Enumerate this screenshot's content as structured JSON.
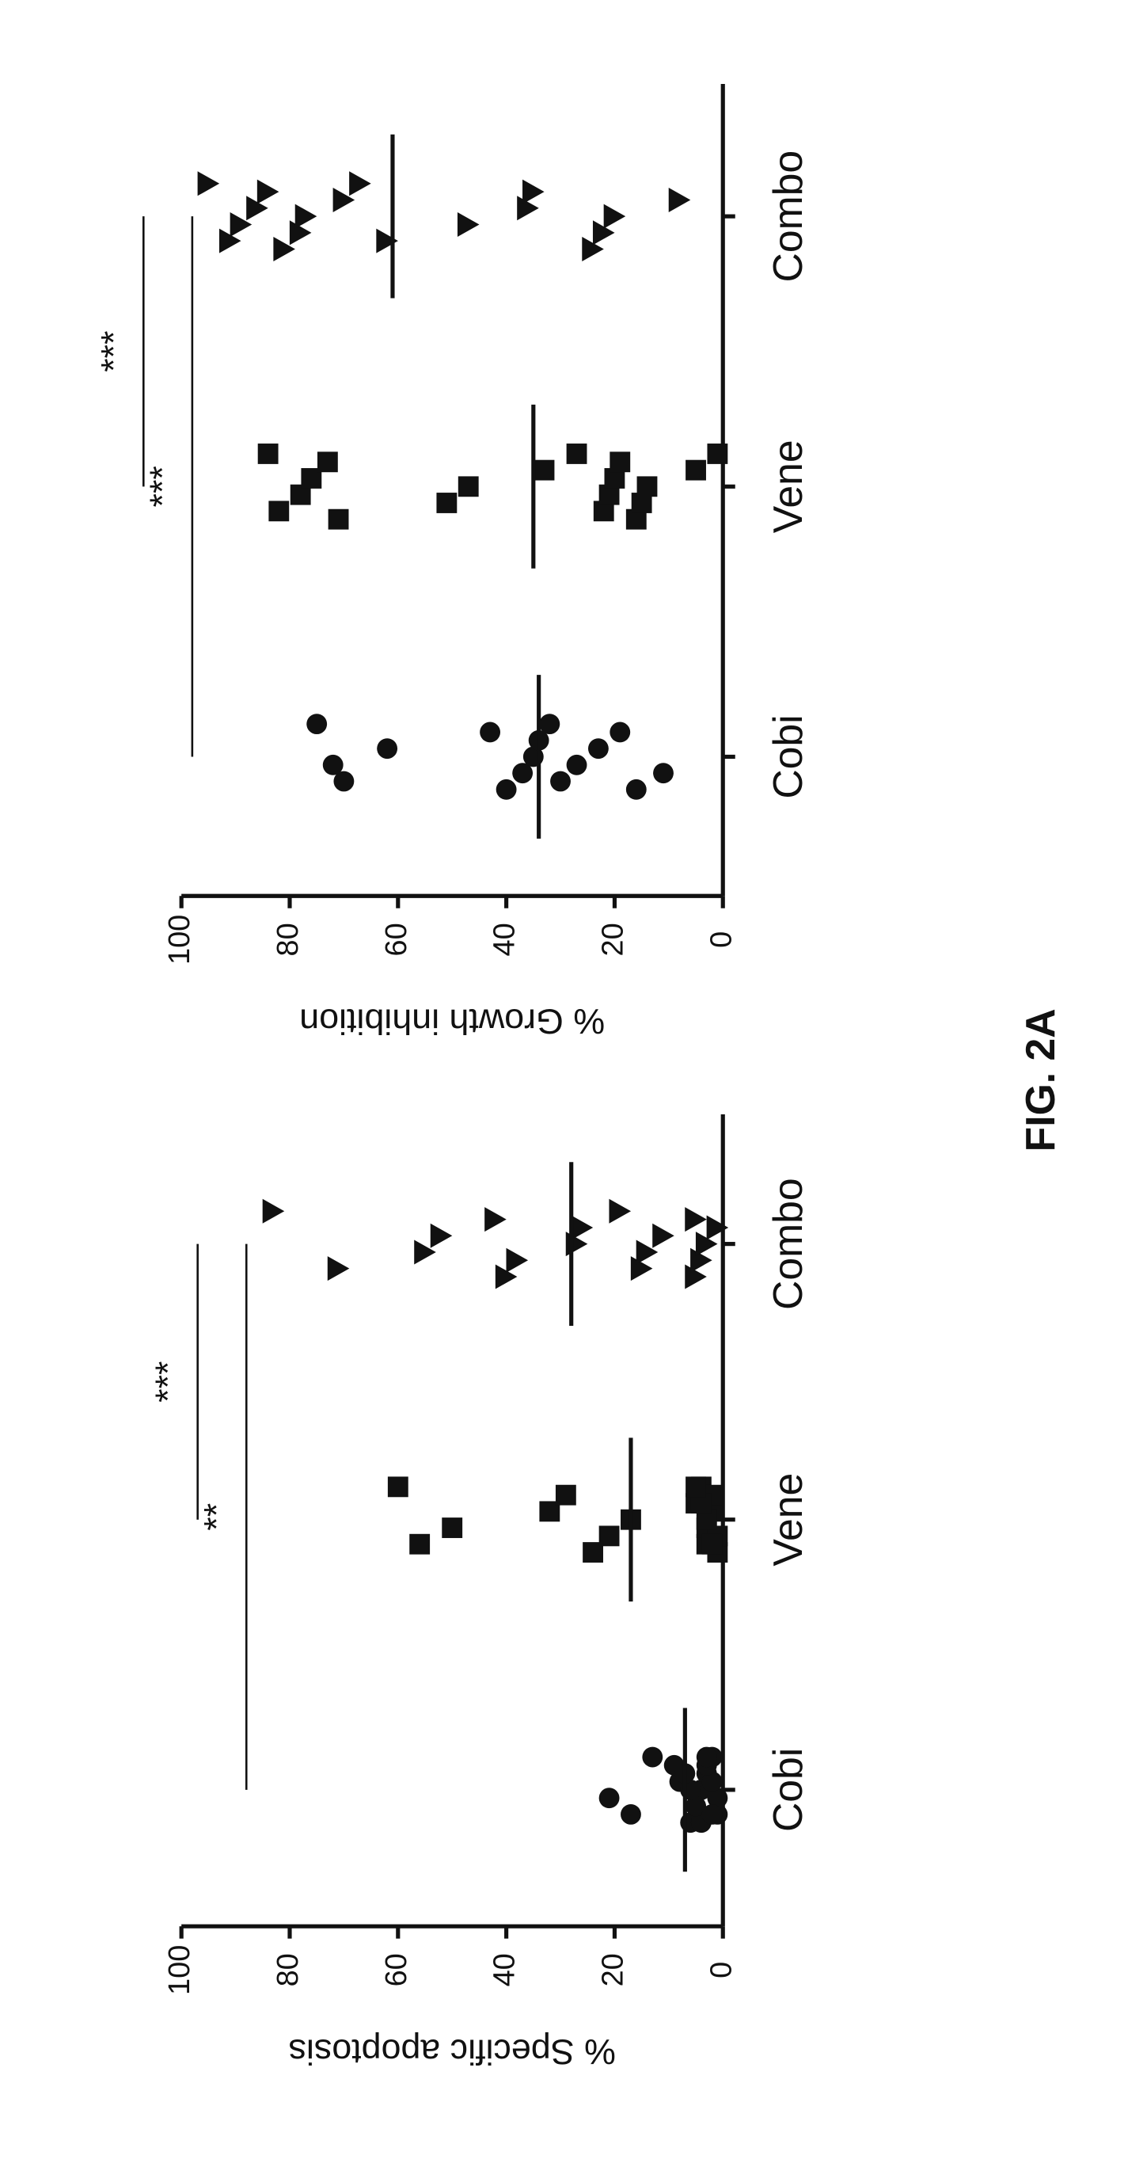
{
  "chart_data": [
    {
      "type": "dotplot",
      "y_label": "% Specific apoptosis",
      "categories": [
        "Cobi",
        "Vene",
        "Combo"
      ],
      "groups": [
        {
          "marker": "circle",
          "mean": 7,
          "values": [
            13,
            17,
            21,
            8,
            9,
            6,
            5,
            4,
            3,
            2,
            1,
            1,
            2,
            3,
            4,
            5,
            6,
            7,
            3,
            2
          ]
        },
        {
          "marker": "square",
          "mean": 17,
          "values": [
            60,
            56,
            50,
            32,
            29,
            24,
            21,
            17,
            5,
            4,
            3,
            3,
            2,
            2,
            1,
            1,
            3,
            4,
            5,
            2
          ]
        },
        {
          "marker": "triangle",
          "mean": 28,
          "values": [
            83,
            71,
            55,
            52,
            42,
            40,
            38,
            27,
            26,
            19,
            15,
            14,
            11,
            5,
            5,
            4,
            3,
            1
          ]
        }
      ],
      "color": "#111111",
      "ylim": [
        0,
        100
      ],
      "yticks": [
        0,
        20,
        40,
        60,
        80,
        100
      ],
      "brackets": [
        {
          "from": 0,
          "to": 2,
          "value": 88,
          "label": "**"
        },
        {
          "from": 1,
          "to": 2,
          "value": 97,
          "label": "***"
        }
      ]
    },
    {
      "type": "dotplot",
      "y_label": "% Growth inhibition",
      "categories": [
        "Cobi",
        "Vene",
        "Combo"
      ],
      "groups": [
        {
          "marker": "circle",
          "mean": 34,
          "values": [
            75,
            70,
            72,
            62,
            43,
            40,
            37,
            35,
            34,
            32,
            30,
            27,
            23,
            19,
            16,
            11
          ]
        },
        {
          "marker": "square",
          "mean": 35,
          "values": [
            84,
            82,
            78,
            76,
            73,
            71,
            51,
            47,
            33,
            27,
            22,
            21,
            20,
            19,
            16,
            15,
            14,
            5,
            1
          ]
        },
        {
          "marker": "triangle",
          "mean": 61,
          "values": [
            95,
            91,
            89,
            86,
            84,
            81,
            78,
            77,
            70,
            67,
            62,
            47,
            36,
            35,
            24,
            22,
            20,
            8
          ]
        }
      ],
      "color": "#111111",
      "ylim": [
        0,
        100
      ],
      "yticks": [
        0,
        20,
        40,
        60,
        80,
        100
      ],
      "brackets": [
        {
          "from": 0,
          "to": 2,
          "value": 98,
          "label": "***"
        },
        {
          "from": 1,
          "to": 2,
          "value": 107,
          "label": "***"
        }
      ]
    }
  ],
  "figure_label": "FIG. 2A"
}
